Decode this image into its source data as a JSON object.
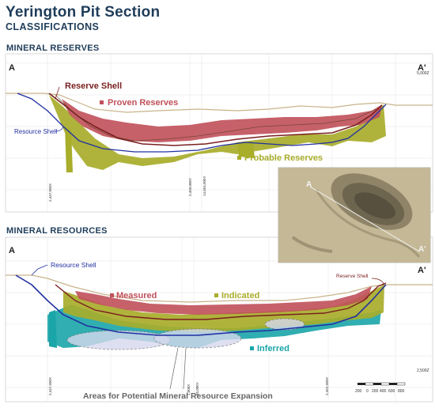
{
  "title": "Yerington Pit Section",
  "subtitle": "CLASSIFICATIONS",
  "reserves": {
    "heading": "MINERAL RESERVES",
    "section_left": "A",
    "section_right": "A'",
    "elevation_label": "5,000Z",
    "reserve_shell": "Reserve Shell",
    "resource_shell": "Resource Shell",
    "proven": "Proven Reserves",
    "probable": "Probable Reserves",
    "ticks": [
      "2,447,500X",
      "2,450,000Y",
      "14,654,000Y"
    ]
  },
  "resources": {
    "heading": "MINERAL RESOURCES",
    "section_left": "A",
    "section_right": "A'",
    "elevation_label": "2,500Z",
    "resource_shell": "Resource Shell",
    "reserve_shell": "Reserve Shell",
    "measured": "Measured",
    "indicated": "Indicated",
    "inferred": "Inferred",
    "expansion": "Areas for Potential Mineral Resource Expansion",
    "ticks": [
      "2,447,500X",
      "1,000X",
      "65,000Y",
      "2,452,500X"
    ]
  },
  "inset": {
    "label_a": "A",
    "label_a_prime": "A'"
  },
  "scale_bar": {
    "labels": [
      "200",
      "0",
      "200",
      "400",
      "600",
      "800"
    ]
  },
  "colors": {
    "navy": "#1f3d5a",
    "proven": "#c0505a",
    "probable": "#a8ad2a",
    "inferred": "#1aa5a8",
    "reserve_shell": "#7a1f1f",
    "resource_shell": "#2230a0"
  }
}
